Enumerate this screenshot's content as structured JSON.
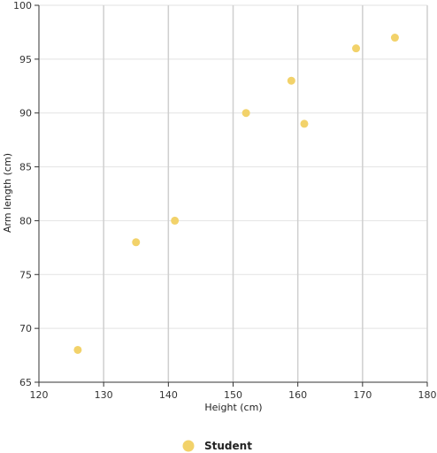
{
  "chart_data": {
    "type": "scatter",
    "xlabel": "Height (cm)",
    "ylabel": "Arm length (cm)",
    "xlim": [
      120,
      180
    ],
    "ylim": [
      65,
      100
    ],
    "x_ticks": [
      120,
      130,
      140,
      150,
      160,
      170,
      180
    ],
    "y_ticks": [
      65,
      70,
      75,
      80,
      85,
      90,
      95,
      100
    ],
    "grid": true,
    "legend_position": "bottom-center",
    "series": [
      {
        "name": "Student",
        "color": "#f2d26a",
        "points": [
          {
            "x": 126,
            "y": 68
          },
          {
            "x": 135,
            "y": 78
          },
          {
            "x": 141,
            "y": 80
          },
          {
            "x": 152,
            "y": 90
          },
          {
            "x": 159,
            "y": 93
          },
          {
            "x": 161,
            "y": 89
          },
          {
            "x": 169,
            "y": 96
          },
          {
            "x": 175,
            "y": 97
          }
        ]
      }
    ]
  }
}
